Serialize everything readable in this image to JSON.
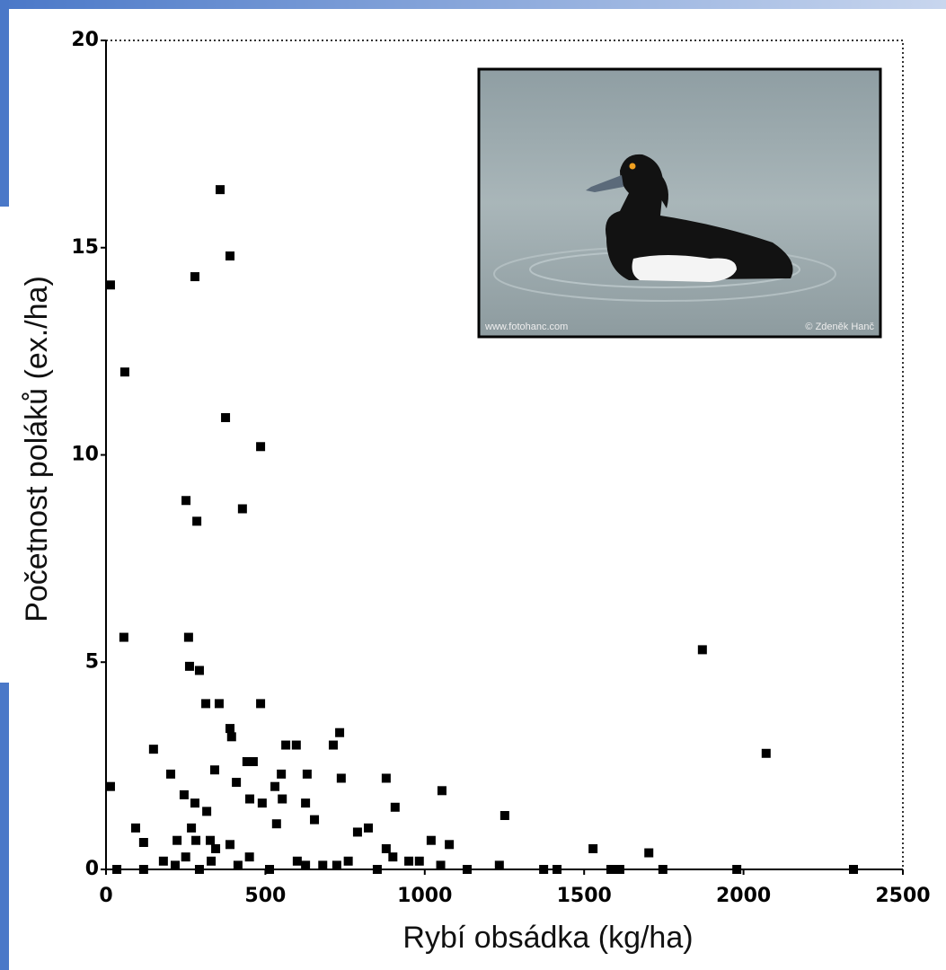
{
  "chart_data": {
    "type": "scatter",
    "x_label": "Rybí obsádka (kg/ha)",
    "y_label": "Početnost poláků (ex./ha)",
    "xlim": [
      0,
      2500
    ],
    "ylim": [
      0,
      20
    ],
    "xticks": [
      0,
      500,
      1000,
      1500,
      2000,
      2500
    ],
    "yticks": [
      0,
      5,
      10,
      15,
      20
    ],
    "annotations": [
      "www.fotohanc.com",
      "© Zdeněk Hanč"
    ],
    "series": [
      {
        "color": "#000000",
        "x": [
          358,
          389,
          14,
          279,
          59,
          375,
          485,
          251,
          285,
          428,
          56,
          259,
          1871,
          262,
          293,
          313,
          355,
          485,
          2071,
          389,
          394,
          149,
          203,
          341,
          442,
          462,
          409,
          564,
          597,
          550,
          631,
          713,
          733,
          738,
          879,
          1054,
          907,
          1251,
          14,
          245,
          279,
          451,
          490,
          530,
          553,
          626,
          654,
          535,
          93,
          118,
          223,
          282,
          316,
          327,
          344,
          389,
          268,
          789,
          823,
          879,
          1020,
          1077,
          1528,
          1703,
          34,
          118,
          217,
          293,
          414,
          513,
          626,
          724,
          851,
          983,
          1133,
          1234,
          1373,
          1415,
          1584,
          1612,
          1747,
          1979,
          2345,
          180,
          250,
          330,
          450,
          600,
          680,
          760,
          900,
          950,
          1050
        ],
        "y": [
          16.4,
          14.8,
          14.1,
          14.3,
          12.0,
          10.9,
          10.2,
          8.9,
          8.4,
          8.7,
          5.6,
          5.6,
          5.3,
          4.9,
          4.8,
          4.0,
          4.0,
          4.0,
          2.8,
          3.4,
          3.2,
          2.9,
          2.3,
          2.4,
          2.6,
          2.6,
          2.1,
          3.0,
          3.0,
          2.3,
          2.3,
          3.0,
          3.3,
          2.2,
          2.2,
          1.9,
          1.5,
          1.3,
          2.0,
          1.8,
          1.6,
          1.7,
          1.6,
          2.0,
          1.7,
          1.6,
          1.2,
          1.1,
          1.0,
          0.65,
          0.7,
          0.7,
          1.4,
          0.7,
          0.5,
          0.6,
          1.0,
          0.9,
          1.0,
          0.5,
          0.7,
          0.6,
          0.5,
          0.4,
          0,
          0,
          0.1,
          0,
          0.1,
          0,
          0.1,
          0.1,
          0,
          0.2,
          0,
          0.1,
          0,
          0,
          0,
          0,
          0,
          0,
          0,
          0.2,
          0.3,
          0.2,
          0.3,
          0.2,
          0.1,
          0.2,
          0.3,
          0.2,
          0.1
        ]
      }
    ]
  }
}
